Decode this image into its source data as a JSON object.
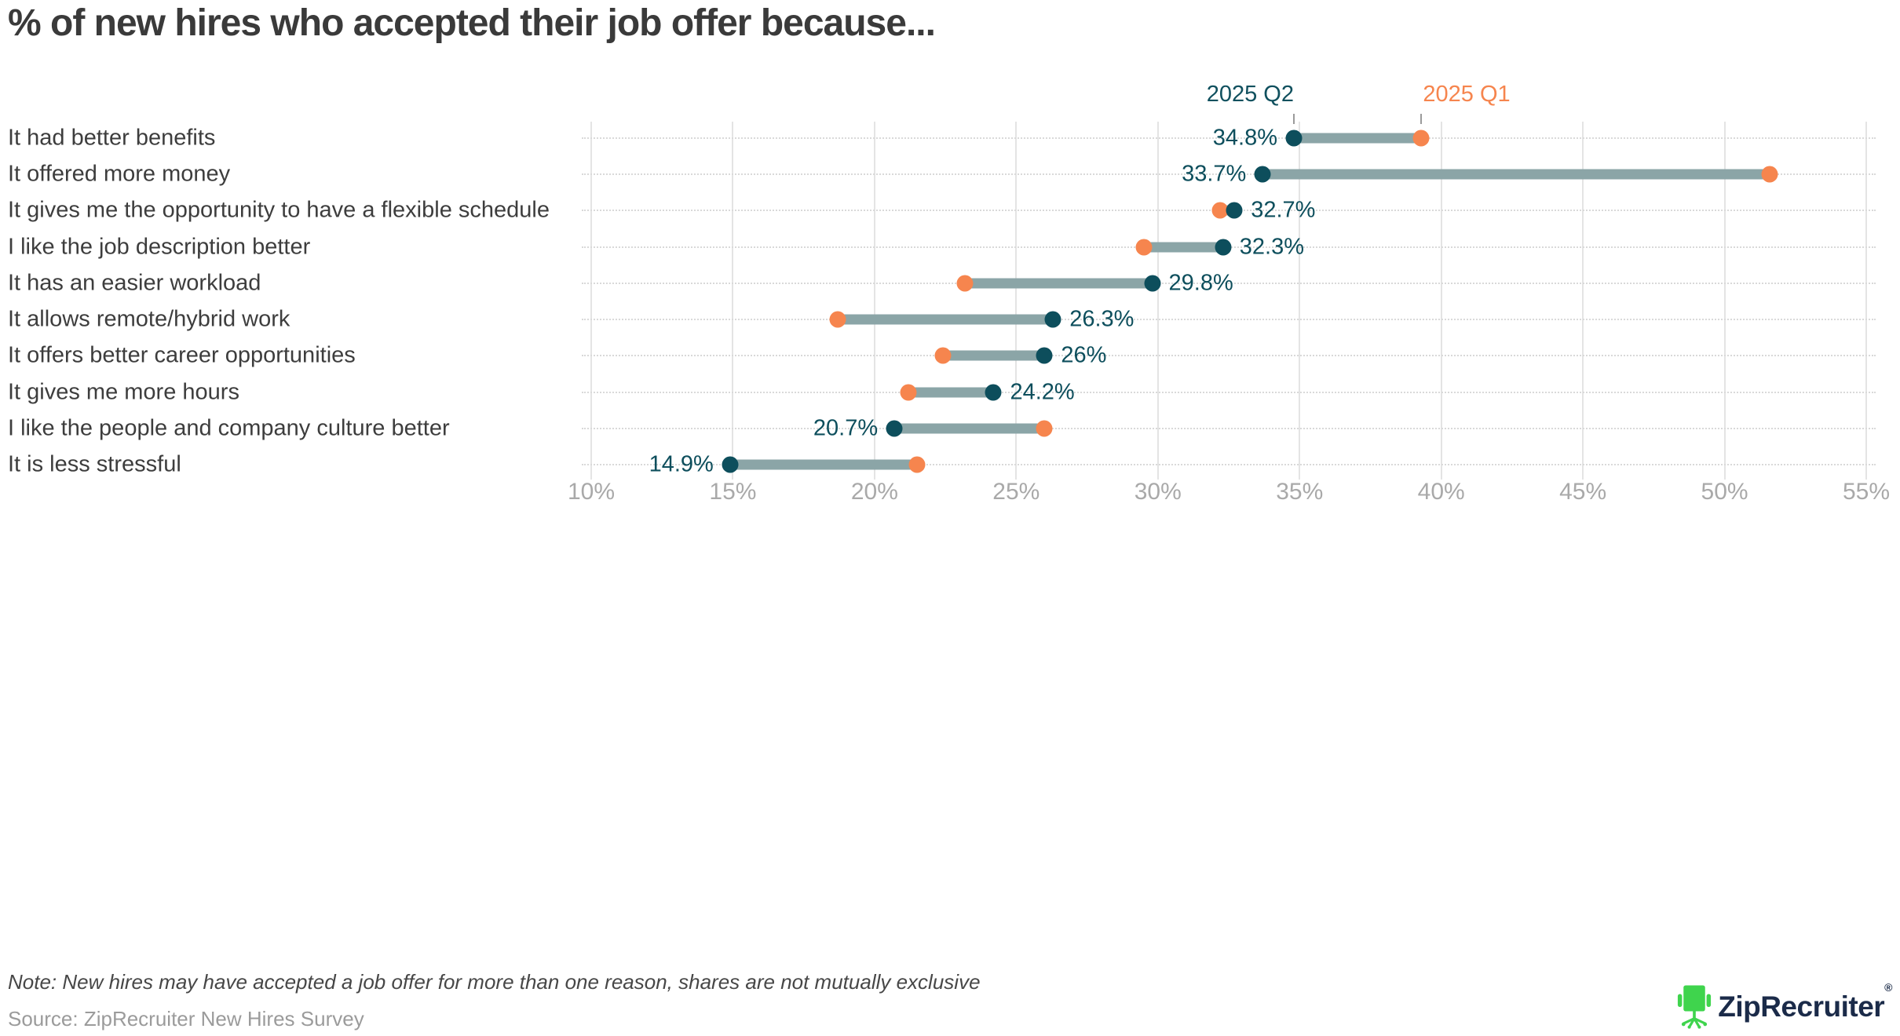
{
  "title": "% of new hires who accepted their job offer because...",
  "chart_data": {
    "type": "dumbbell",
    "categories": [
      "It had better benefits",
      "It offered more money",
      "It gives me the opportunity to have a flexible schedule",
      "I like the job description better",
      "It has an easier workload",
      "It allows remote/hybrid work",
      "It offers better career opportunities",
      "It gives me more hours",
      "I like the people and company culture better",
      "It is less stressful"
    ],
    "series": [
      {
        "name": "2025 Q2",
        "color": "#0D4E5C",
        "values": [
          34.8,
          33.7,
          32.7,
          32.3,
          29.8,
          26.3,
          26,
          24.2,
          20.7,
          14.9
        ],
        "value_labels": [
          "34.8%",
          "33.7%",
          "32.7%",
          "32.3%",
          "29.8%",
          "26.3%",
          "26%",
          "24.2%",
          "20.7%",
          "14.9%"
        ]
      },
      {
        "name": "2025 Q1",
        "color": "#F6854E",
        "values": [
          39.3,
          51.6,
          32.2,
          29.5,
          23.2,
          18.7,
          22.4,
          21.2,
          26.0,
          21.5
        ]
      }
    ],
    "label_side": [
      "left",
      "left",
      "right",
      "right",
      "right",
      "right",
      "right",
      "right",
      "left",
      "left"
    ],
    "x_ticks": [
      "10%",
      "15%",
      "20%",
      "25%",
      "30%",
      "35%",
      "40%",
      "45%",
      "50%",
      "55%"
    ],
    "xlim": [
      10,
      55
    ],
    "connector_color": "#8BA5A7",
    "grid": true,
    "legend_position": "top-inline"
  },
  "footer": {
    "note": "Note: New hires may have accepted a job offer for more than one reason, shares are not mutually exclusive",
    "source": "Source: ZipRecruiter New Hires Survey"
  },
  "logo": {
    "text": "ZipRecruiter",
    "registered": "®",
    "chair_color": "#3FD44D",
    "text_color": "#1B2B49"
  }
}
